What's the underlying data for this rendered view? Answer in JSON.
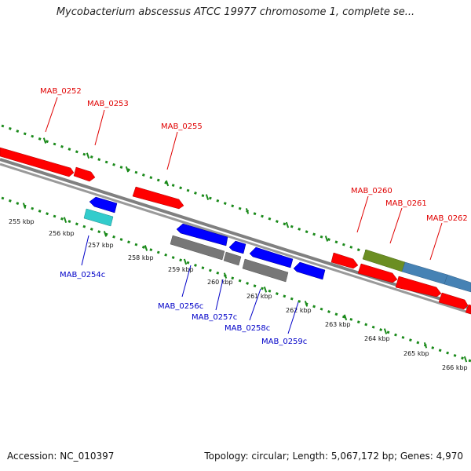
{
  "header": {
    "title": "Mycobacterium abscessus ATCC 19977 chromosome 1, complete se..."
  },
  "footer": {
    "accession": "Accession: NC_010397",
    "summary": "Topology: circular; Length: 5,067,172 bp; Genes: 4,970"
  },
  "ruler": [
    "255 kbp",
    "256 kbp",
    "257 kbp",
    "258 kbp",
    "259 kbp",
    "260 kbp",
    "261 kbp",
    "262 kbp",
    "263 kbp",
    "264 kbp",
    "265 kbp",
    "266 kbp"
  ],
  "colors": {
    "forward": "#ff0000",
    "reverse": "#0000ff",
    "cyan": "#33cccc",
    "gray": "#777777",
    "olive": "#6b8e23",
    "steel": "#4682b4",
    "dots": "#1a8a1a"
  },
  "genes": {
    "forward": [
      {
        "label": "MAB_0252"
      },
      {
        "label": "MAB_0253"
      },
      {
        "label": "MAB_0255"
      },
      {
        "label": "MAB_0260"
      },
      {
        "label": "MAB_0261"
      },
      {
        "label": "MAB_0262"
      }
    ],
    "reverse": [
      {
        "label": "MAB_0254c"
      },
      {
        "label": "MAB_0256c"
      },
      {
        "label": "MAB_0257c"
      },
      {
        "label": "MAB_0258c"
      },
      {
        "label": "MAB_0259c"
      }
    ]
  }
}
